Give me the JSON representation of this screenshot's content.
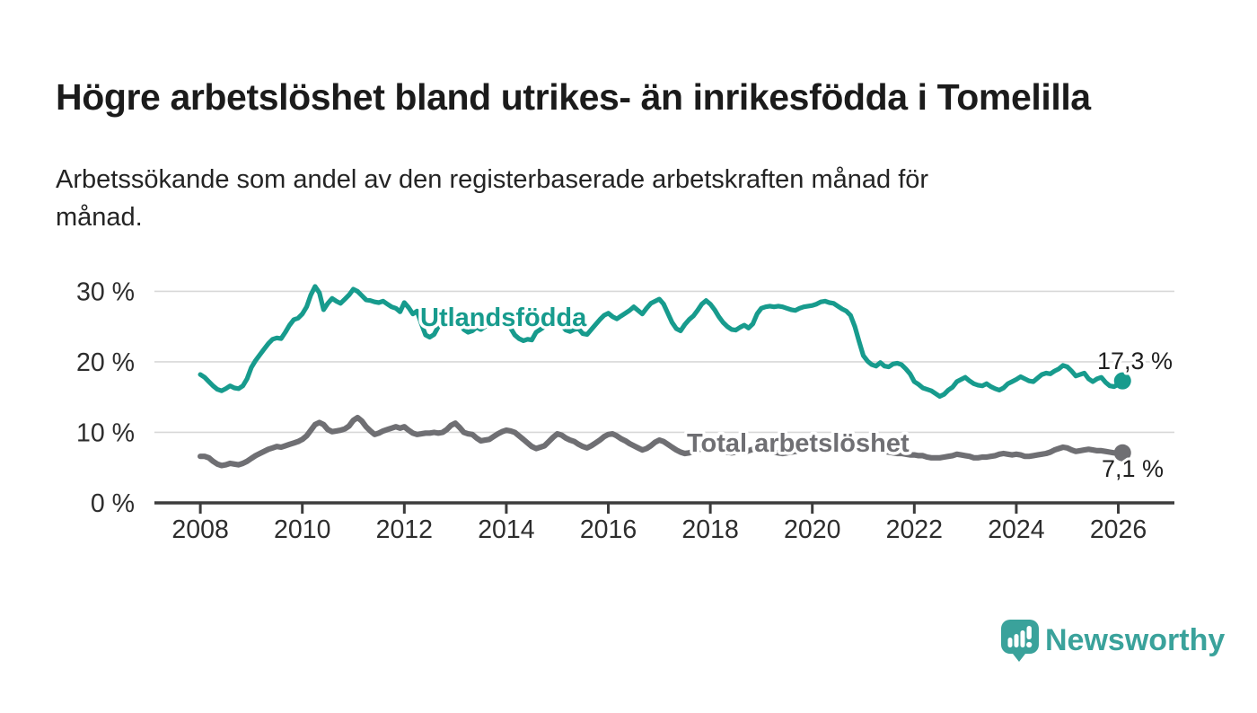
{
  "header": {
    "title": "Högre arbetslöshet bland utrikes- än inrikesfödda i Tomelilla",
    "subtitle": "Arbetssökande som andel av den registerbaserade arbetskraften månad för\nmånad."
  },
  "footer": {
    "brand": "Newsworthy"
  },
  "colors": {
    "foreign_born": "#179B8D",
    "total": "#6F6F73",
    "grid": "#D8D8D8",
    "axis": "#3C3C3C",
    "tick_text": "#2D2D2D",
    "value_text": "#1F1F1F",
    "brand_teal": "#3AA29B"
  },
  "chart_data": {
    "type": "line",
    "title": "Högre arbetslöshet bland utrikes- än inrikesfödda i Tomelilla",
    "subtitle": "Arbetssökande som andel av den registerbaserade arbetskraften månad för månad.",
    "xlabel": "",
    "ylabel": "",
    "grid": "horizontal",
    "legend_position": "inline-labels",
    "x_domain": [
      2007.1,
      2027.1
    ],
    "y_domain": [
      0,
      35
    ],
    "x_ticks": [
      2008,
      2010,
      2012,
      2014,
      2016,
      2018,
      2020,
      2022,
      2024,
      2026
    ],
    "y_ticks": [
      0,
      10,
      20,
      30
    ],
    "y_tick_suffix": " %",
    "series": [
      {
        "name": "Utlandsfödda",
        "color": "#179B8D",
        "stroke_width": 5.2,
        "end_label": "17,3 %",
        "end_value": 17.3,
        "start_year": 2008,
        "points_per_year": 12,
        "values": [
          18.2,
          17.8,
          17.2,
          16.6,
          16.1,
          15.9,
          16.2,
          16.6,
          16.3,
          16.2,
          16.6,
          17.6,
          19.2,
          20.2,
          21.0,
          21.8,
          22.6,
          23.2,
          23.4,
          23.3,
          24.2,
          25.2,
          26.0,
          26.2,
          26.8,
          27.8,
          29.5,
          30.7,
          29.8,
          27.4,
          28.3,
          29.0,
          28.6,
          28.3,
          28.9,
          29.5,
          30.3,
          30.0,
          29.4,
          28.8,
          28.7,
          28.5,
          28.4,
          28.6,
          28.2,
          27.8,
          27.6,
          27.1,
          28.4,
          27.7,
          26.8,
          27.2,
          25.4,
          23.8,
          23.5,
          23.9,
          25.0,
          25.9,
          26.3,
          26.6,
          26.4,
          25.6,
          24.6,
          24.2,
          24.4,
          24.9,
          24.6,
          25.0,
          25.3,
          25.2,
          25.4,
          25.5,
          25.6,
          24.8,
          23.8,
          23.3,
          23.0,
          23.2,
          23.1,
          24.2,
          24.6,
          25.0,
          25.4,
          25.8,
          25.9,
          25.2,
          24.5,
          24.3,
          24.6,
          24.7,
          24.0,
          23.9,
          24.6,
          25.3,
          26.0,
          26.6,
          26.9,
          26.4,
          26.1,
          26.5,
          26.9,
          27.3,
          27.8,
          27.3,
          26.8,
          27.6,
          28.3,
          28.6,
          28.9,
          28.2,
          26.9,
          25.6,
          24.7,
          24.4,
          25.3,
          26.0,
          26.5,
          27.3,
          28.2,
          28.7,
          28.2,
          27.4,
          26.4,
          25.6,
          25.0,
          24.6,
          24.5,
          24.9,
          25.2,
          24.8,
          25.4,
          26.8,
          27.6,
          27.8,
          27.9,
          27.8,
          27.9,
          27.8,
          27.6,
          27.4,
          27.3,
          27.6,
          27.8,
          27.9,
          28.0,
          28.2,
          28.5,
          28.6,
          28.4,
          28.3,
          27.9,
          27.5,
          27.2,
          26.6,
          25.0,
          22.9,
          20.9,
          20.1,
          19.6,
          19.4,
          19.9,
          19.4,
          19.3,
          19.7,
          19.8,
          19.6,
          19.0,
          18.3,
          17.2,
          16.8,
          16.3,
          16.1,
          15.9,
          15.5,
          15.1,
          15.4,
          16.0,
          16.4,
          17.2,
          17.5,
          17.8,
          17.3,
          16.9,
          16.7,
          16.6,
          16.9,
          16.5,
          16.2,
          16.0,
          16.3,
          16.9,
          17.2,
          17.5,
          17.9,
          17.6,
          17.3,
          17.2,
          17.7,
          18.2,
          18.4,
          18.3,
          18.7,
          19.0,
          19.5,
          19.3,
          18.7,
          18.0,
          18.2,
          18.4,
          17.6,
          17.2,
          17.6,
          17.8,
          17.1,
          16.6,
          16.5,
          16.8,
          17.3
        ]
      },
      {
        "name": "Total arbetslöshet",
        "color": "#6F6F73",
        "stroke_width": 6.2,
        "end_label": "7,1 %",
        "end_value": 7.1,
        "start_year": 2008,
        "points_per_year": 12,
        "values": [
          6.6,
          6.6,
          6.4,
          5.9,
          5.5,
          5.3,
          5.4,
          5.6,
          5.5,
          5.4,
          5.6,
          5.9,
          6.3,
          6.7,
          7.0,
          7.3,
          7.6,
          7.8,
          8.0,
          7.9,
          8.1,
          8.3,
          8.5,
          8.7,
          9.0,
          9.5,
          10.3,
          11.1,
          11.4,
          11.1,
          10.4,
          10.1,
          10.2,
          10.3,
          10.5,
          10.9,
          11.7,
          12.1,
          11.6,
          10.8,
          10.2,
          9.7,
          9.9,
          10.2,
          10.4,
          10.6,
          10.8,
          10.6,
          10.8,
          10.3,
          9.9,
          9.7,
          9.8,
          9.9,
          9.9,
          10.0,
          9.9,
          10.0,
          10.4,
          11.0,
          11.3,
          10.7,
          10.0,
          9.8,
          9.7,
          9.2,
          8.8,
          8.9,
          9.0,
          9.4,
          9.8,
          10.1,
          10.3,
          10.2,
          10.0,
          9.5,
          9.0,
          8.5,
          8.0,
          7.7,
          7.9,
          8.1,
          8.7,
          9.3,
          9.8,
          9.6,
          9.2,
          8.9,
          8.7,
          8.3,
          8.0,
          7.8,
          8.1,
          8.5,
          8.9,
          9.4,
          9.7,
          9.8,
          9.5,
          9.1,
          8.8,
          8.4,
          8.1,
          7.8,
          7.5,
          7.7,
          8.1,
          8.6,
          8.9,
          8.7,
          8.3,
          7.9,
          7.5,
          7.2,
          7.0,
          7.1,
          7.3,
          7.5,
          7.7,
          7.9,
          8.0,
          7.9,
          7.7,
          7.4,
          7.2,
          7.1,
          7.2,
          7.3,
          7.2,
          7.4,
          7.6,
          7.8,
          7.9,
          7.7,
          7.4,
          7.2,
          7.1,
          7.0,
          7.1,
          7.2,
          7.3,
          7.4,
          7.6,
          7.8,
          7.9,
          8.1,
          8.3,
          8.5,
          8.8,
          8.7,
          8.6,
          8.4,
          8.2,
          8.1,
          8.0,
          7.9,
          7.8,
          7.7,
          7.6,
          7.5,
          7.4,
          7.3,
          7.2,
          7.1,
          7.0,
          7.0,
          6.9,
          6.8,
          6.8,
          6.7,
          6.7,
          6.5,
          6.4,
          6.4,
          6.4,
          6.5,
          6.6,
          6.7,
          6.9,
          6.8,
          6.7,
          6.6,
          6.4,
          6.4,
          6.5,
          6.5,
          6.6,
          6.7,
          6.9,
          7.0,
          6.9,
          6.8,
          6.9,
          6.8,
          6.6,
          6.6,
          6.7,
          6.8,
          6.9,
          7.0,
          7.2,
          7.5,
          7.7,
          7.9,
          7.8,
          7.5,
          7.3,
          7.4,
          7.5,
          7.6,
          7.5,
          7.4,
          7.4,
          7.3,
          7.2,
          7.1,
          7.1,
          7.1
        ]
      }
    ],
    "layout": {
      "x_range": [
        172,
        1308
      ],
      "y_range": [
        560,
        285.2
      ],
      "tick_length": 12,
      "dot_radius": 9.5,
      "series_label_pos": [
        {
          "x": 468,
          "y": 363
        },
        {
          "x": 765,
          "y": 503
        }
      ],
      "end_label_pos": [
        {
          "x": 1222,
          "y": 411
        },
        {
          "x": 1227,
          "y": 531
        }
      ]
    }
  }
}
